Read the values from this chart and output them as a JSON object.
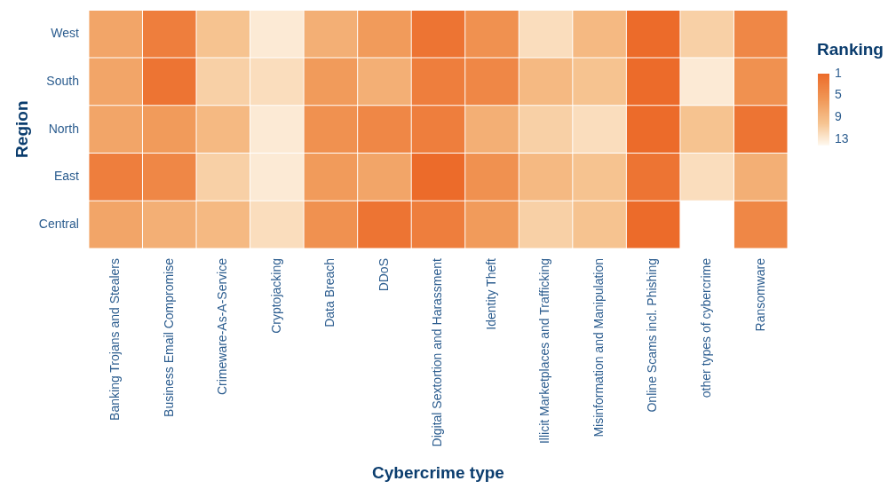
{
  "chart_data": {
    "type": "heatmap",
    "xlabel": "Cybercrime type",
    "ylabel": "Region",
    "clabel": "Ranking",
    "categories": [
      "Banking Trojans and Stealers",
      "Business Email Compromise",
      "Crimeware-As-A-Service",
      "Cryptojacking",
      "Data Breach",
      "DDoS",
      "Digital Sextortion and Harassment",
      "Identity Theft",
      "Illicit Marketplaces and Trafficking",
      "Misinformation and Manipulation",
      "Online Scams incl. Phishing",
      "other types of cybercrime",
      "Ransomware"
    ],
    "y_categories": [
      "West",
      "South",
      "North",
      "East",
      "Central"
    ],
    "cells": [
      [
        7,
        3,
        10,
        13,
        8,
        6,
        2,
        5,
        12,
        9,
        1,
        11,
        4
      ],
      [
        7,
        2,
        11,
        12,
        6,
        8,
        3,
        4,
        9,
        10,
        1,
        13,
        5
      ],
      [
        7,
        6,
        9,
        13,
        5,
        4,
        3,
        8,
        11,
        12,
        1,
        10,
        2
      ],
      [
        3,
        4,
        11,
        13,
        6,
        7,
        1,
        5,
        9,
        10,
        2,
        12,
        8
      ],
      [
        7,
        8,
        9,
        12,
        5,
        2,
        3,
        6,
        11,
        10,
        1,
        null,
        4
      ]
    ],
    "clim": [
      1,
      14
    ],
    "cticks": [
      1,
      5,
      9,
      13
    ]
  }
}
